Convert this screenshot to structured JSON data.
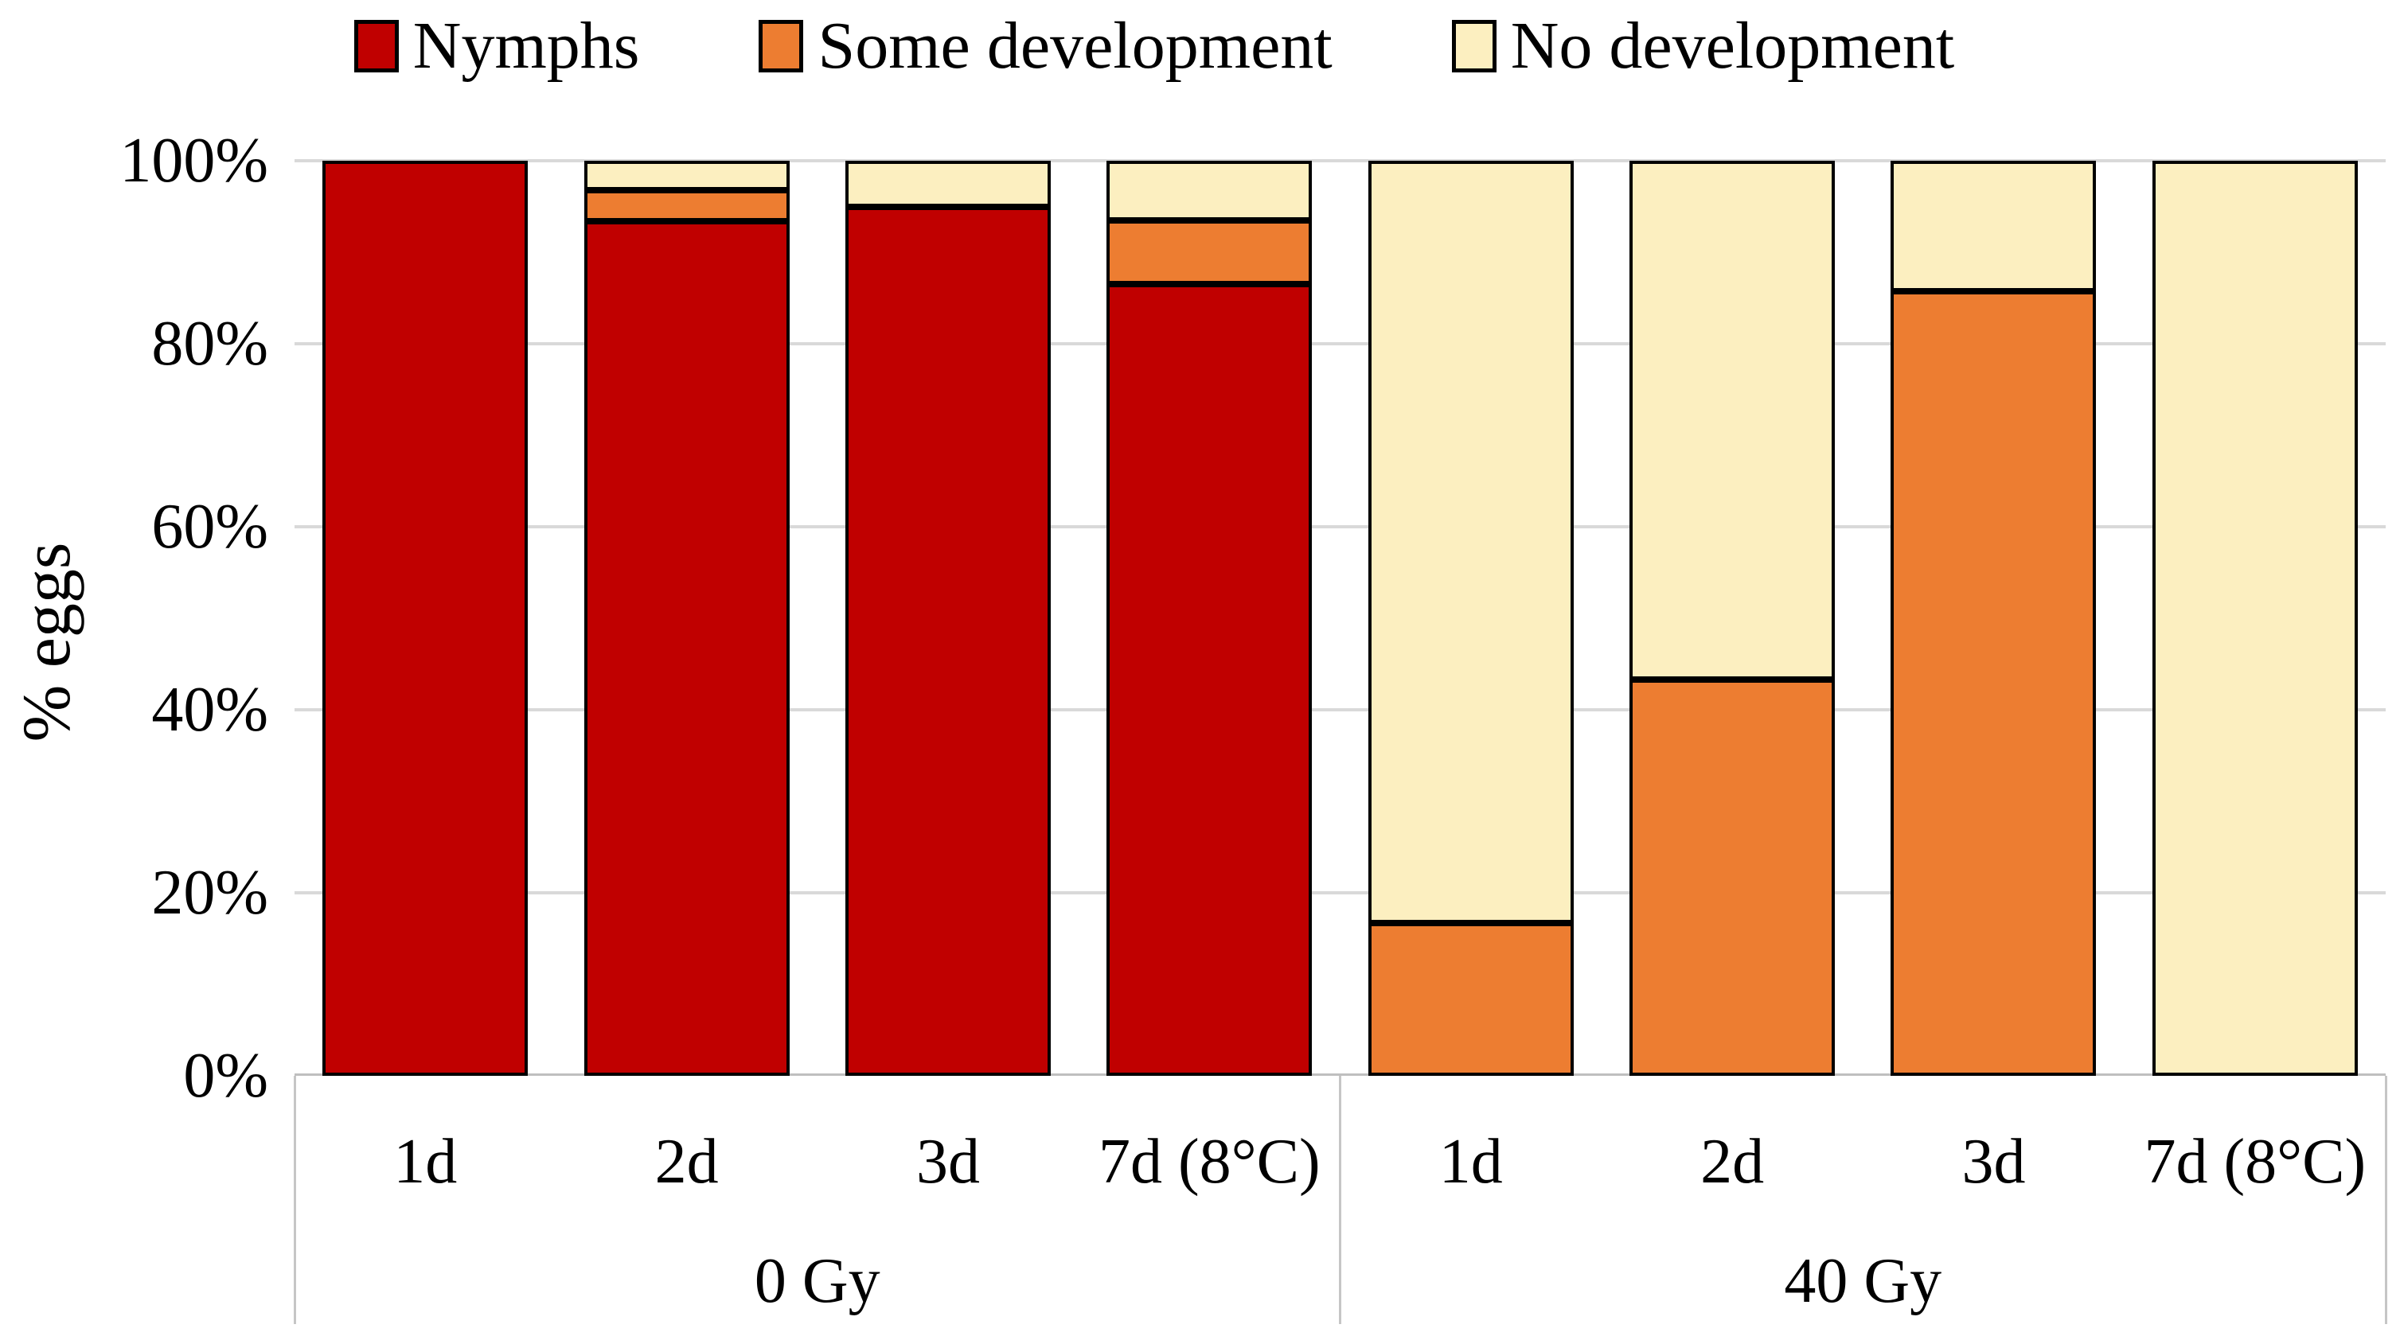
{
  "chart_data": {
    "type": "bar",
    "stacked": true,
    "stacking": "percent",
    "title": "",
    "ylabel": "% eggs",
    "ylim": [
      0,
      100
    ],
    "yticks": [
      "0%",
      "20%",
      "40%",
      "60%",
      "80%",
      "100%"
    ],
    "grid": true,
    "legend_position": "top",
    "groups": [
      {
        "label": "0 Gy",
        "categories": [
          "1d",
          "2d",
          "3d",
          "7d (8°C)"
        ]
      },
      {
        "label": "40 Gy",
        "categories": [
          "1d",
          "2d",
          "3d",
          "7d (8°C)"
        ]
      }
    ],
    "series": [
      {
        "name": "Nymphs",
        "color": "#c00000",
        "values": [
          100,
          93.4,
          95,
          86.5,
          0,
          0,
          0,
          0
        ]
      },
      {
        "name": "Some development",
        "color": "#ed7d31",
        "values": [
          0,
          3.4,
          0,
          7.0,
          16.7,
          43.3,
          85.7,
          0
        ]
      },
      {
        "name": "No development",
        "color": "#fcefc0",
        "values": [
          0,
          3.2,
          5,
          6.5,
          83.3,
          56.7,
          14.3,
          100
        ]
      }
    ],
    "colors": {
      "bar_border": "#000000",
      "gridline": "#d9d9d9",
      "axis_line": "#bfbfbf",
      "text": "#000000",
      "background": "#ffffff"
    }
  }
}
